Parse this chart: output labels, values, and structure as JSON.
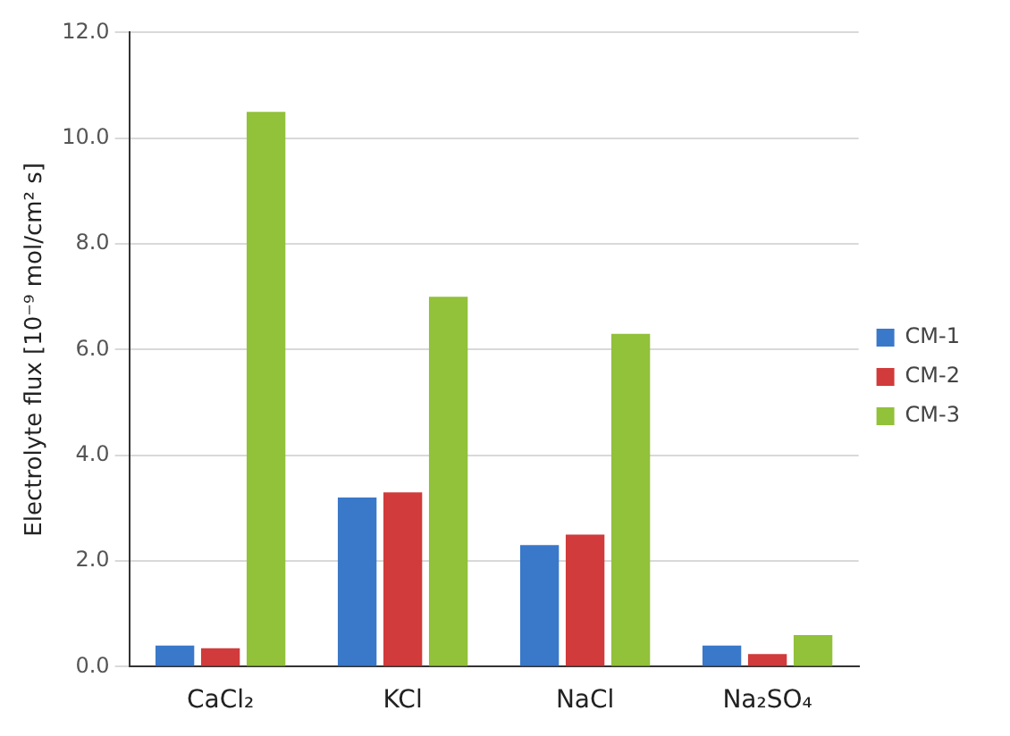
{
  "chart_data": {
    "type": "bar",
    "ylabel": "Electrolyte flux [10⁻⁹ mol/cm² s]",
    "categories": [
      "CaCl₂",
      "KCl",
      "NaCl",
      "Na₂SO₄"
    ],
    "series": [
      {
        "name": "CM-1",
        "color": "#3a78c9",
        "values": [
          0.4,
          3.2,
          2.3,
          0.4
        ]
      },
      {
        "name": "CM-2",
        "color": "#d13b3b",
        "values": [
          0.35,
          3.3,
          2.5,
          0.24
        ]
      },
      {
        "name": "CM-3",
        "color": "#92c13a",
        "values": [
          10.5,
          7.0,
          6.3,
          0.6
        ]
      }
    ],
    "ylim": [
      0,
      12
    ],
    "yticks": [
      {
        "value": 0,
        "label": "0.0"
      },
      {
        "value": 2,
        "label": "2.0"
      },
      {
        "value": 4,
        "label": "4.0"
      },
      {
        "value": 6,
        "label": "6.0"
      },
      {
        "value": 8,
        "label": "8.0"
      },
      {
        "value": 10,
        "label": "10.0"
      },
      {
        "value": 12,
        "label": "12.0"
      }
    ],
    "grid": "y",
    "legend": "right"
  }
}
